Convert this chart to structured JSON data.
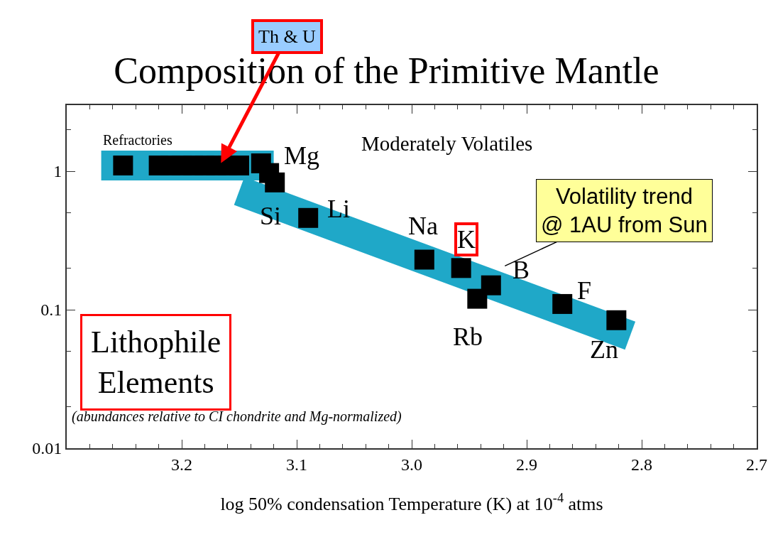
{
  "chart_data": {
    "type": "scatter",
    "title": "Composition of the Primitive Mantle",
    "xlabel": "log 50% condensation Temperature (K) at 10$^{-4}$ atms",
    "xlim": [
      3.3,
      2.7
    ],
    "xticks": [
      3.2,
      3.1,
      {
        "value": 3.0,
        "label": "3.0"
      },
      2.9,
      2.8,
      2.7
    ],
    "ylim": [
      0.01,
      3
    ],
    "yticks": [
      1,
      0.1,
      0.01
    ],
    "log": "y",
    "grid": false,
    "series": [
      {
        "type": "line",
        "color": "#1fa8c8",
        "x": [
          3.27,
          3.12
        ],
        "values": [
          1.1,
          1.1
        ]
      },
      {
        "type": "line",
        "color": "#1fa8c8",
        "x": [
          3.15,
          2.81
        ],
        "values": [
          0.72,
          0.065
        ]
      },
      {
        "color": "#000000",
        "marker": "square",
        "x": [
          3.251,
          3.22,
          3.21,
          3.2,
          3.19,
          3.18,
          3.17,
          3.16,
          3.15,
          3.131,
          3.124,
          3.119,
          3.09,
          2.989,
          2.957,
          2.931,
          2.943,
          2.869,
          2.822
        ],
        "values": [
          1.1,
          1.1,
          1.1,
          1.1,
          1.1,
          1.1,
          1.1,
          1.1,
          1.1,
          1.14,
          0.97,
          0.83,
          0.46,
          0.23,
          0.2,
          0.15,
          0.12,
          0.11,
          0.084
        ]
      }
    ],
    "annotations": [
      {
        "text": "Mg",
        "x": 3.131,
        "y": 1.14
      },
      {
        "text": "Si",
        "x": 3.119,
        "y": 0.83
      },
      {
        "text": "Li",
        "x": 3.09,
        "y": 0.46
      },
      {
        "text": "Na",
        "x": 2.989,
        "y": 0.23
      },
      {
        "text": "K",
        "x": 2.957,
        "y": 0.2
      },
      {
        "text": "B",
        "x": 2.931,
        "y": 0.15
      },
      {
        "text": "Rb",
        "x": 2.943,
        "y": 0.12
      },
      {
        "text": "F",
        "x": 2.869,
        "y": 0.11
      },
      {
        "text": "Zn",
        "x": 2.822,
        "y": 0.084
      },
      {
        "text": "Th & U",
        "x": 3.167,
        "y": 1.1
      },
      {
        "text": "Volatility trend\n@ 1AU from Sun",
        "x": 2.938,
        "y": 0.175
      },
      "Refractories",
      "Moderately Volatiles",
      "Lithophile\nElements",
      "(abundances relative to CI chondrite and Mg-normalized)"
    ]
  }
}
